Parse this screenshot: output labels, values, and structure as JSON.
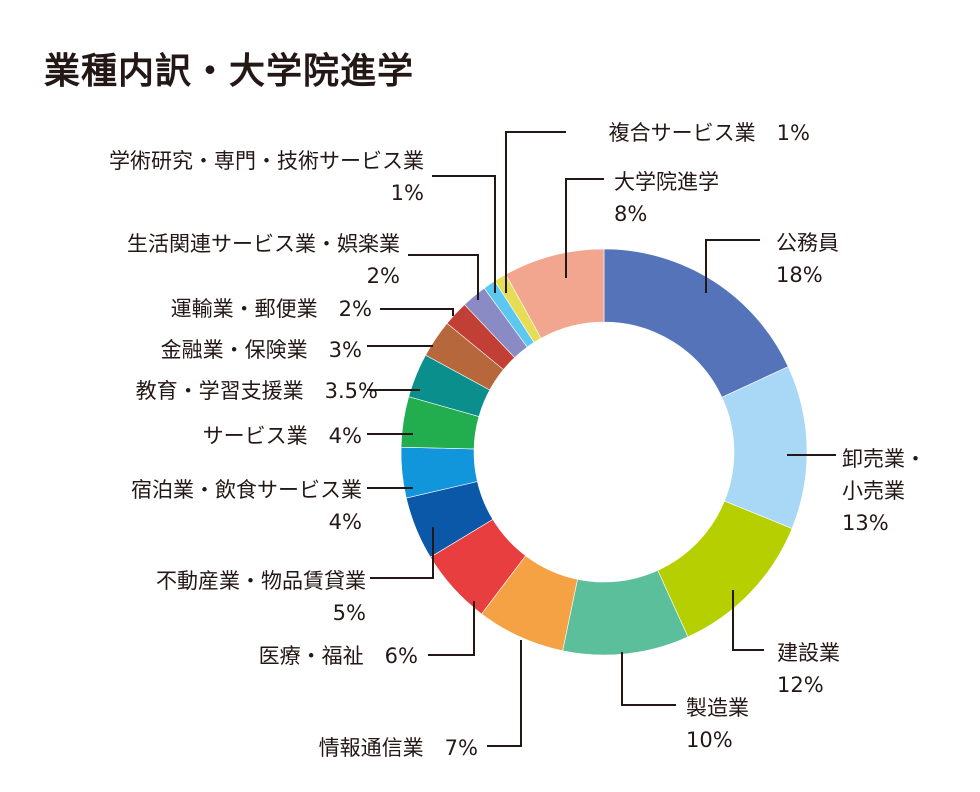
{
  "chart_data": {
    "type": "pie",
    "style": "donut",
    "title": "業種内訳・大学院進学",
    "slices": [
      {
        "name": "公務員",
        "value": 18,
        "value_label": "18%",
        "color": "#5573b8"
      },
      {
        "name": "卸売業・小売業",
        "value": 13,
        "value_label": "13%",
        "color": "#a8d8f5"
      },
      {
        "name": "建設業",
        "value": 12,
        "value_label": "12%",
        "color": "#b5cf00"
      },
      {
        "name": "製造業",
        "value": 10,
        "value_label": "10%",
        "color": "#5cbf9b"
      },
      {
        "name": "情報通信業",
        "value": 7,
        "value_label": "7%",
        "color": "#f4a244"
      },
      {
        "name": "医療・福祉",
        "value": 6,
        "value_label": "6%",
        "color": "#e83e3f"
      },
      {
        "name": "不動産業・物品賃貸業",
        "value": 5,
        "value_label": "5%",
        "color": "#0b58a9"
      },
      {
        "name": "宿泊業・飲食サービス業",
        "value": 4,
        "value_label": "4%",
        "color": "#1195db"
      },
      {
        "name": "サービス業",
        "value": 4,
        "value_label": "4%",
        "color": "#22ad4e"
      },
      {
        "name": "教育・学習支援業",
        "value": 3.5,
        "value_label": "3.5%",
        "color": "#0a8f8c"
      },
      {
        "name": "金融業・保険業",
        "value": 3,
        "value_label": "3%",
        "color": "#b6683c"
      },
      {
        "name": "運輸業・郵便業",
        "value": 2,
        "value_label": "2%",
        "color": "#c23f36"
      },
      {
        "name": "生活関連サービス業・娯楽業",
        "value": 2,
        "value_label": "2%",
        "color": "#8a8ac5"
      },
      {
        "name": "学術研究・専門・技術サービス業",
        "value": 1,
        "value_label": "1%",
        "color": "#5cc7ef"
      },
      {
        "name": "複合サービス業",
        "value": 1,
        "value_label": "1%",
        "color": "#e5de55"
      },
      {
        "name": "大学院進学",
        "value": 8,
        "value_label": "8%",
        "color": "#f2a58f"
      }
    ]
  },
  "labels": [
    {
      "lines": [
        "公務員",
        "18%"
      ]
    },
    {
      "lines": [
        "卸売業・",
        "小売業",
        "13%"
      ]
    },
    {
      "lines": [
        "建設業",
        "12%"
      ]
    },
    {
      "lines": [
        "製造業",
        "10%"
      ]
    },
    {
      "lines": [
        "情報通信業　7%"
      ]
    },
    {
      "lines": [
        "医療・福祉　6%"
      ]
    },
    {
      "lines": [
        "不動産業・物品賃貸業",
        "5%"
      ]
    },
    {
      "lines": [
        "宿泊業・飲食サービス業",
        "4%"
      ]
    },
    {
      "lines": [
        "サービス業　4%"
      ]
    },
    {
      "lines": [
        "教育・学習支援業　3.5%"
      ]
    },
    {
      "lines": [
        "金融業・保険業　3%"
      ]
    },
    {
      "lines": [
        "運輸業・郵便業　2%"
      ]
    },
    {
      "lines": [
        "生活関連サービス業・娯楽業",
        "2%"
      ]
    },
    {
      "lines": [
        "学術研究・専門・技術サービス業",
        "1%"
      ]
    },
    {
      "lines": [
        "複合サービス業　1%"
      ]
    },
    {
      "lines": [
        "大学院進学",
        "8%"
      ]
    }
  ]
}
